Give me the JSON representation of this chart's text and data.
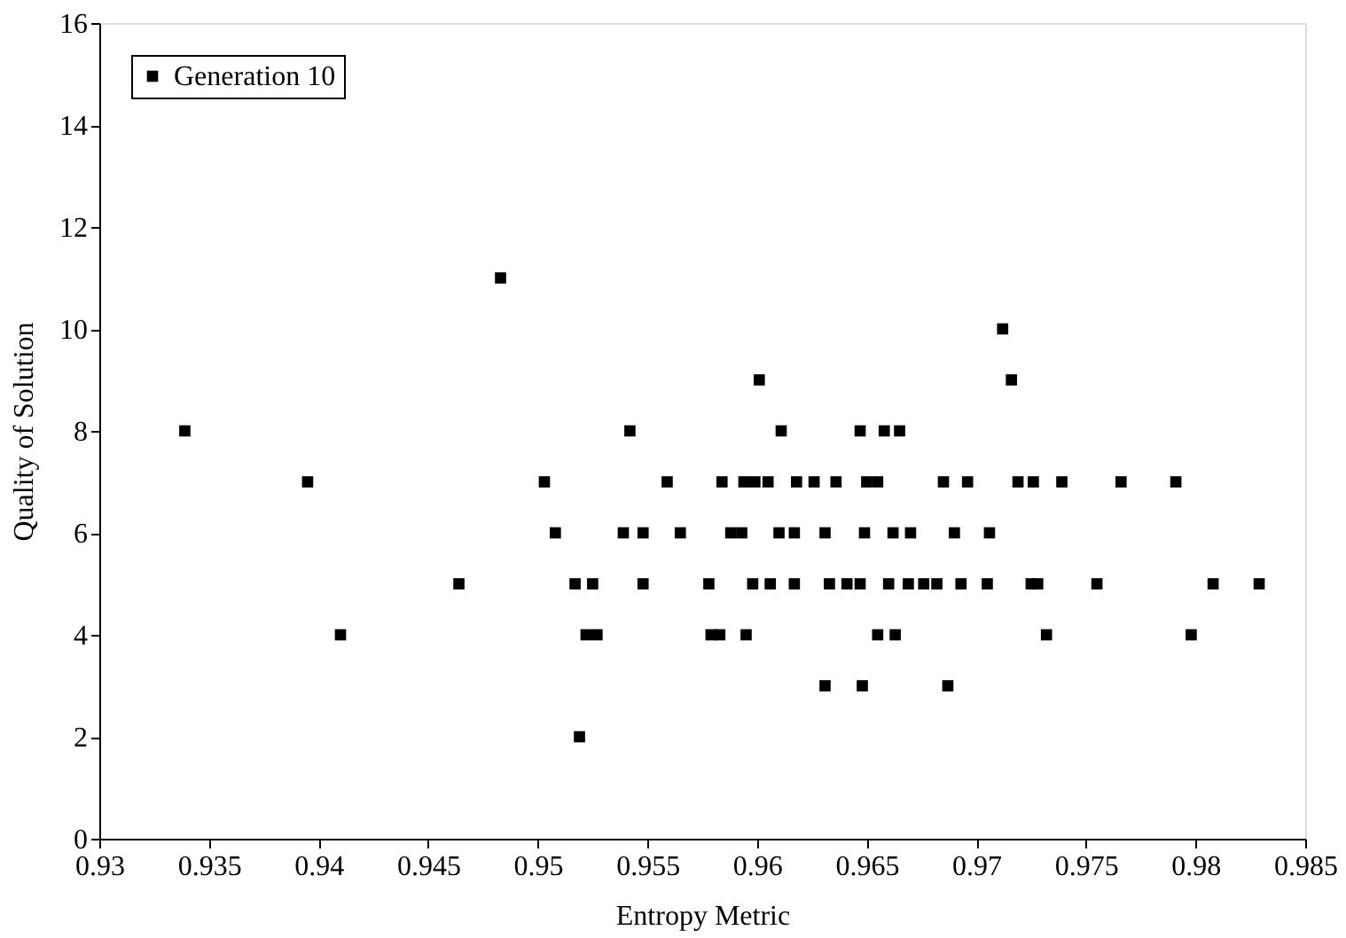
{
  "chart_data": {
    "type": "scatter",
    "xlabel": "Entropy Metric",
    "ylabel": "Quality of Solution",
    "series": [
      {
        "name": "Generation 10",
        "color": "#000000",
        "x": [
          0.9339,
          0.9395,
          0.941,
          0.9464,
          0.9483,
          0.9503,
          0.9508,
          0.9542,
          0.9559,
          0.9539,
          0.9548,
          0.9565,
          0.9517,
          0.9525,
          0.9548,
          0.9522,
          0.9527,
          0.9519,
          0.9712,
          0.9601,
          0.9716,
          0.9611,
          0.9647,
          0.9658,
          0.9665,
          0.9584,
          0.9594,
          0.9599,
          0.9605,
          0.9618,
          0.9626,
          0.9636,
          0.965,
          0.9655,
          0.9685,
          0.9696,
          0.9719,
          0.9726,
          0.9739,
          0.9766,
          0.9791,
          0.9588,
          0.9593,
          0.961,
          0.9617,
          0.9631,
          0.9649,
          0.9662,
          0.967,
          0.969,
          0.9706,
          0.9578,
          0.9598,
          0.9606,
          0.9617,
          0.9633,
          0.9641,
          0.9647,
          0.966,
          0.9669,
          0.9676,
          0.9682,
          0.9693,
          0.9705,
          0.9725,
          0.9728,
          0.9755,
          0.9808,
          0.9829,
          0.9579,
          0.9583,
          0.9595,
          0.9655,
          0.9663,
          0.9732,
          0.9798,
          0.9631,
          0.9648,
          0.9687
        ],
        "values": [
          8,
          7,
          4,
          5,
          11,
          7,
          6,
          8,
          7,
          6,
          6,
          6,
          5,
          5,
          5,
          4,
          4,
          2,
          10,
          9,
          9,
          8,
          8,
          8,
          8,
          7,
          7,
          7,
          7,
          7,
          7,
          7,
          7,
          7,
          7,
          7,
          7,
          7,
          7,
          7,
          7,
          6,
          6,
          6,
          6,
          6,
          6,
          6,
          6,
          6,
          6,
          5,
          5,
          5,
          5,
          5,
          5,
          5,
          5,
          5,
          5,
          5,
          5,
          5,
          5,
          5,
          5,
          5,
          5,
          4,
          4,
          4,
          4,
          4,
          4,
          4,
          3,
          3,
          3
        ]
      }
    ],
    "xlim": [
      0.93,
      0.985
    ],
    "xticks": [
      0.93,
      0.935,
      0.94,
      0.945,
      0.95,
      0.955,
      0.96,
      0.965,
      0.97,
      0.975,
      0.98,
      0.985
    ],
    "ylim": [
      0,
      16
    ],
    "yticks": [
      0,
      2,
      4,
      6,
      8,
      10,
      12,
      14,
      16
    ],
    "marker": "square",
    "legend": "top left",
    "grid": false
  }
}
